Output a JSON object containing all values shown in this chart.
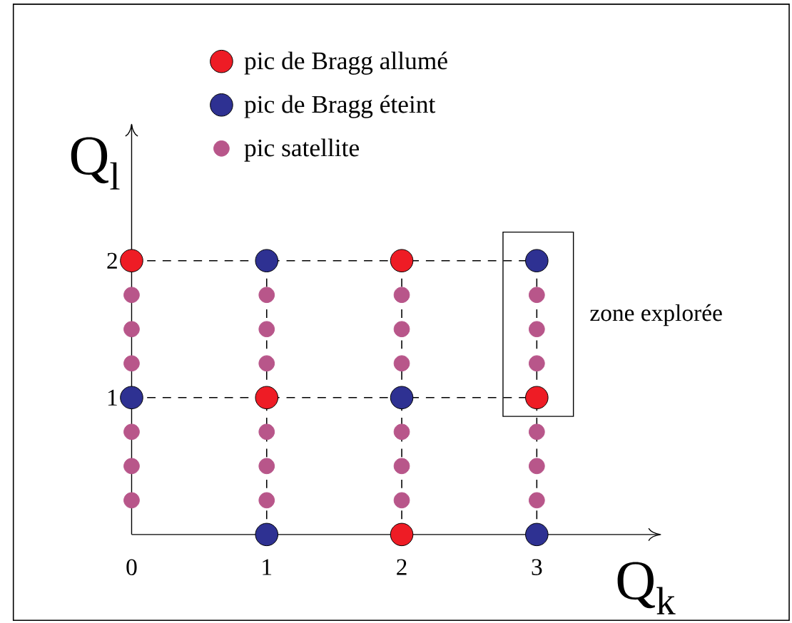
{
  "chart_data": {
    "type": "scatter",
    "xlabel": "Q$_{k}$",
    "ylabel": "Q$_{l}$",
    "xlim": [
      0,
      3.92
    ],
    "ylim": [
      0,
      3
    ],
    "xticks": [
      0,
      1,
      2,
      3
    ],
    "yticks": [
      1,
      2
    ],
    "legend": "top",
    "marker": "circle",
    "series": [
      {
        "name": "pic de Bragg allumé",
        "color": "#ee1c25",
        "x": [
          0,
          2,
          1,
          3,
          2
        ],
        "values": [
          2,
          2,
          1,
          1,
          0
        ]
      },
      {
        "name": "pic de Bragg éteint",
        "color": "#2e3192",
        "x": [
          1,
          3,
          0,
          2,
          1,
          3
        ],
        "values": [
          2,
          2,
          1,
          1,
          0,
          0
        ]
      },
      {
        "name": "pic satellite",
        "color": "#b8568a",
        "x": [
          0,
          0,
          0,
          0,
          0,
          0,
          1,
          1,
          1,
          1,
          1,
          1,
          2,
          2,
          2,
          2,
          2,
          2,
          3,
          3,
          3,
          3,
          3,
          3
        ],
        "values": [
          0.25,
          0.5,
          0.75,
          1.25,
          1.5,
          1.75,
          0.25,
          0.5,
          0.75,
          1.25,
          1.5,
          1.75,
          0.25,
          0.5,
          0.75,
          1.25,
          1.5,
          1.75,
          0.25,
          0.5,
          0.75,
          1.25,
          1.5,
          1.75
        ]
      }
    ],
    "ref_lines": [
      {
        "axis": "y",
        "value": 1,
        "line_style": "dashed"
      },
      {
        "axis": "y",
        "value": 2,
        "line_style": "dashed"
      },
      {
        "axis": "x",
        "value": 1,
        "line_style": "dashed"
      },
      {
        "axis": "x",
        "value": 2,
        "line_style": "dashed"
      },
      {
        "axis": "x",
        "value": 3,
        "line_style": "dashed"
      }
    ],
    "annotations": [
      {
        "text": "zone explorée",
        "x": 3,
        "y": 1.5
      }
    ]
  }
}
